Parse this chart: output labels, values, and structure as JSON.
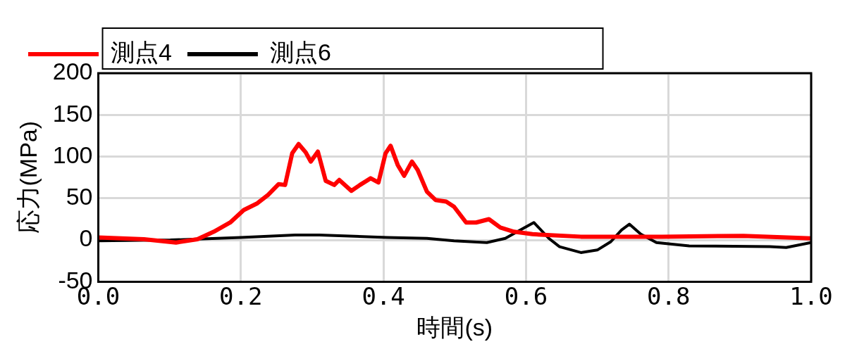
{
  "chart_data": {
    "type": "line",
    "xlabel": "時間(s)",
    "ylabel": "応力(MPa)",
    "xlim": [
      0,
      1
    ],
    "ylim": [
      -50,
      200
    ],
    "xticks": [
      {
        "value": 0,
        "label": "0.0"
      },
      {
        "value": 0.2,
        "label": "0.2"
      },
      {
        "value": 0.4,
        "label": "0.4"
      },
      {
        "value": 0.6,
        "label": "0.6"
      },
      {
        "value": 0.8,
        "label": "0.8"
      },
      {
        "value": 1,
        "label": "1.0"
      }
    ],
    "yticks": [
      -50,
      0,
      50,
      100,
      150,
      200
    ],
    "grid": true,
    "legend": "top",
    "marker": "none",
    "line_style": "solid",
    "series": [
      {
        "name": "測点4",
        "color": "#ff0000",
        "x": [
          0,
          0.064,
          0.109,
          0.139,
          0.162,
          0.185,
          0.204,
          0.223,
          0.238,
          0.253,
          0.262,
          0.272,
          0.281,
          0.291,
          0.298,
          0.308,
          0.319,
          0.331,
          0.338,
          0.355,
          0.367,
          0.382,
          0.393,
          0.403,
          0.41,
          0.42,
          0.429,
          0.44,
          0.448,
          0.461,
          0.473,
          0.488,
          0.499,
          0.516,
          0.53,
          0.548,
          0.564,
          0.583,
          0.609,
          0.677,
          0.791,
          0.905,
          1
        ],
        "values": [
          3,
          1,
          -3,
          1,
          10,
          21,
          36,
          44,
          54,
          67,
          66,
          104,
          115,
          105,
          94,
          106,
          71,
          66,
          72,
          59,
          66,
          74,
          69,
          104,
          113,
          90,
          77,
          94,
          84,
          58,
          48,
          46,
          40,
          21,
          21,
          25,
          15,
          10,
          7,
          4,
          4,
          5,
          2
        ]
      },
      {
        "name": "測点6",
        "color": "#000000",
        "x": [
          0,
          0.101,
          0.2,
          0.276,
          0.31,
          0.405,
          0.461,
          0.499,
          0.545,
          0.571,
          0.594,
          0.611,
          0.632,
          0.647,
          0.677,
          0.7,
          0.719,
          0.734,
          0.745,
          0.761,
          0.783,
          0.829,
          0.942,
          0.965,
          1
        ],
        "values": [
          -1,
          0,
          3,
          6,
          6,
          3,
          2,
          -1,
          -3,
          2,
          13,
          21,
          2,
          -8,
          -15,
          -12,
          -2,
          12,
          19,
          7,
          -3,
          -7,
          -8,
          -9,
          -3
        ]
      }
    ]
  }
}
